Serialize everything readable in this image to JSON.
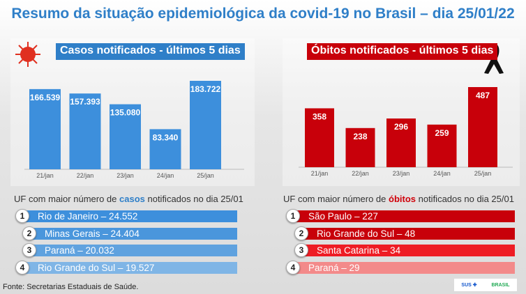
{
  "title": "Resumo da situação epidemiológica da covid-19 no Brasil – dia 25/01/22",
  "chart_data": [
    {
      "type": "bar",
      "title": "Casos notificados - últimos 5 dias",
      "categories": [
        "21/jan",
        "22/jan",
        "23/jan",
        "24/jan",
        "25/jan"
      ],
      "values": [
        166539,
        157393,
        135080,
        83340,
        183722
      ],
      "labels": [
        "166.539",
        "157.393",
        "135.080",
        "83.340",
        "183.722"
      ],
      "color": "#3d8fdc",
      "grid": false
    },
    {
      "type": "bar",
      "title": "Óbitos notificados - últimos 5 dias",
      "categories": [
        "21/jan",
        "22/jan",
        "23/jan",
        "24/jan",
        "25/jan"
      ],
      "values": [
        358,
        238,
        296,
        259,
        487
      ],
      "labels": [
        "358",
        "238",
        "296",
        "259",
        "487"
      ],
      "color": "#c8000a",
      "grid": false
    }
  ],
  "cases_ranking": {
    "heading_pre": "UF com maior número de ",
    "heading_em": "casos",
    "heading_post": " notificados no dia 25/01",
    "items": [
      {
        "rank": "1",
        "text": "Rio de Janeiro – 24.552"
      },
      {
        "rank": "2",
        "text": "Minas Gerais – 24.404"
      },
      {
        "rank": "3",
        "text": "Paraná – 20.032"
      },
      {
        "rank": "4",
        "text": "Rio Grande do Sul – 19.527"
      }
    ]
  },
  "deaths_ranking": {
    "heading_pre": "UF com maior número de ",
    "heading_em": "óbitos",
    "heading_post": " notificados no dia 25/01",
    "items": [
      {
        "rank": "1",
        "text": "São Paulo – 227"
      },
      {
        "rank": "2",
        "text": "Rio Grande do Sul – 48"
      },
      {
        "rank": "3",
        "text": "Santa Catarina – 34"
      },
      {
        "rank": "4",
        "text": "Paraná – 29"
      }
    ]
  },
  "source": "Fonte: Secretarias Estaduais de Saúde.",
  "logos": {
    "sus": "SUS",
    "brasil": "BRASIL"
  }
}
